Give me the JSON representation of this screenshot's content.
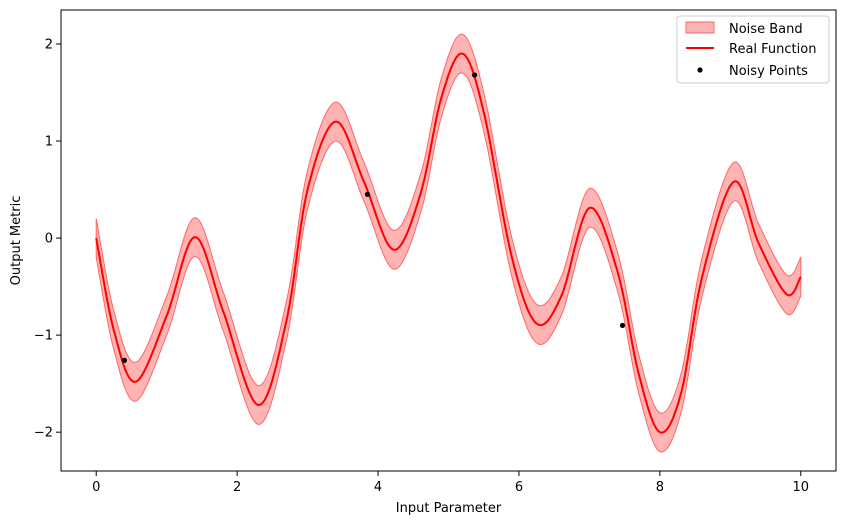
{
  "chart_data": {
    "type": "line",
    "title": "",
    "xlabel": "Input Parameter",
    "ylabel": "Output Metric",
    "xlim": [
      -0.5,
      10.5
    ],
    "ylim": [
      -2.4,
      2.35
    ],
    "x_ticks": [
      0,
      2,
      4,
      6,
      8,
      10
    ],
    "x_tick_labels": [
      "0",
      "2",
      "4",
      "6",
      "8",
      "10"
    ],
    "y_ticks": [
      -2,
      -1,
      0,
      1,
      2
    ],
    "y_tick_labels": [
      "−2",
      "−1",
      "0",
      "1",
      "2"
    ],
    "grid": false,
    "legend_position": "top-right",
    "legend": {
      "band": "Noise Band",
      "line": "Real Function",
      "points": "Noisy Points"
    },
    "colors": {
      "line": "#ff0000",
      "band_fill": "#ff9999",
      "band_edge": "#ff6666",
      "points": "#000000"
    },
    "band_half_width": 0.2,
    "real_function": {
      "name": "Real Function",
      "x": [
        0,
        0.25,
        0.56,
        1.0,
        1.4,
        1.8,
        2.3,
        2.7,
        3.0,
        3.4,
        3.8,
        4.22,
        4.6,
        4.9,
        5.2,
        5.5,
        5.9,
        6.25,
        6.6,
        7.0,
        7.4,
        7.7,
        8.0,
        8.3,
        8.6,
        9.05,
        9.4,
        9.8,
        10.0
      ],
      "y": [
        0.0,
        -0.95,
        -1.48,
        -0.8,
        0.01,
        -0.75,
        -1.72,
        -0.85,
        0.5,
        1.2,
        0.58,
        -0.12,
        0.45,
        1.45,
        1.9,
        1.3,
        -0.2,
        -0.88,
        -0.6,
        0.31,
        -0.35,
        -1.4,
        -2.0,
        -1.6,
        -0.4,
        0.58,
        -0.05,
        -0.58,
        -0.4
      ]
    },
    "noisy_points": {
      "name": "Noisy Points",
      "x": [
        0.4,
        3.85,
        5.37,
        7.47
      ],
      "y": [
        -1.26,
        0.45,
        1.68,
        -0.9
      ]
    }
  }
}
